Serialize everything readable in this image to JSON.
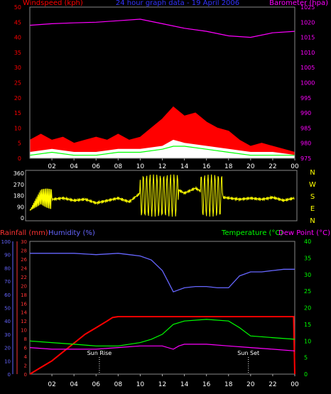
{
  "chart_data": [
    {
      "type": "line",
      "title": "24 hour graph data - 19 April 2006",
      "left_axis": {
        "label": "Windspeed (kph)",
        "ticks": [
          0,
          5,
          10,
          15,
          20,
          25,
          30,
          35,
          40,
          45,
          50
        ],
        "color": "#ff0000"
      },
      "right_axis": {
        "label": "Barometer (hpa)",
        "ticks": [
          975,
          980,
          985,
          990,
          995,
          1000,
          1005,
          1010,
          1015,
          1020,
          1025
        ],
        "color": "#ff00ff"
      },
      "x_ticks": [
        "02",
        "04",
        "06",
        "08",
        "10",
        "12",
        "14",
        "16",
        "18",
        "20",
        "22",
        "00"
      ],
      "series": [
        {
          "name": "Barometer (hpa)",
          "color": "#ff00ff",
          "x": [
            0,
            2,
            4,
            6,
            8,
            10,
            12,
            14,
            16,
            18,
            20,
            22,
            24
          ],
          "values": [
            1019,
            1019.5,
            1019.8,
            1020,
            1020.5,
            1021,
            1019.5,
            1018,
            1017,
            1015.5,
            1015,
            1016.5,
            1017
          ]
        },
        {
          "name": "Gust",
          "color": "#ff0000",
          "x": [
            0,
            1,
            2,
            3,
            4,
            5,
            6,
            7,
            8,
            9,
            10,
            11,
            12,
            13,
            14,
            15,
            16,
            17,
            18,
            19,
            20,
            21,
            22,
            23,
            24
          ],
          "values": [
            6,
            8,
            6,
            7,
            5,
            6,
            7,
            6,
            8,
            6,
            7,
            10,
            13,
            17,
            14,
            15,
            12,
            10,
            9,
            6,
            4,
            5,
            4,
            3,
            2
          ]
        },
        {
          "name": "Average",
          "color": "#ffffff",
          "x": [
            0,
            2,
            4,
            6,
            8,
            10,
            12,
            13,
            14,
            16,
            18,
            20,
            22,
            24
          ],
          "values": [
            2,
            3,
            2,
            2,
            3,
            3,
            4,
            6,
            5,
            4,
            3,
            2,
            2,
            1
          ]
        },
        {
          "name": "Wind avg",
          "color": "#00ff00",
          "x": [
            0,
            2,
            4,
            6,
            8,
            10,
            12,
            13,
            14,
            16,
            18,
            20,
            22,
            24
          ],
          "values": [
            1,
            2,
            1,
            1,
            2,
            2,
            3,
            4,
            4,
            3,
            2,
            1,
            1,
            1
          ]
        }
      ]
    },
    {
      "type": "scatter",
      "left_axis": {
        "ticks": [
          0,
          90,
          180,
          270,
          360
        ]
      },
      "right_axis": {
        "letters": [
          "N",
          "W",
          "S",
          "E",
          "N"
        ]
      },
      "x_ticks": [
        "02",
        "04",
        "06",
        "08",
        "10",
        "12",
        "14",
        "16",
        "18",
        "20",
        "22",
        "00"
      ],
      "series": [
        {
          "name": "Wind direction",
          "color": "#ffff00",
          "x": [
            0,
            1,
            2,
            3,
            4,
            5,
            6,
            7,
            8,
            9,
            10,
            11,
            12,
            13,
            14,
            15,
            16,
            17,
            18,
            19,
            20,
            21,
            22,
            23,
            24
          ],
          "values": [
            60,
            170,
            150,
            160,
            140,
            150,
            120,
            140,
            160,
            130,
            200,
            180,
            220,
            250,
            200,
            240,
            190,
            170,
            160,
            150,
            160,
            150,
            165,
            140,
            160
          ]
        }
      ]
    },
    {
      "type": "line",
      "left_axis_humidity": {
        "label": "Humidity (%)",
        "ticks": [
          0,
          10,
          20,
          30,
          40,
          50,
          60,
          70,
          80,
          90,
          100
        ],
        "color": "#6666ff"
      },
      "left_axis_rain": {
        "label": "Rainfall (mm)",
        "ticks": [
          0,
          2,
          4,
          6,
          8,
          10,
          12,
          14,
          16,
          18,
          20,
          22,
          24,
          26,
          28,
          30
        ],
        "color": "#ff3333"
      },
      "right_axis": {
        "label": "Temperature (°C)",
        "label2": "Dew Point (°C)",
        "ticks": [
          0,
          5,
          10,
          15,
          20,
          25,
          30,
          35,
          40
        ],
        "color": "#00ff00"
      },
      "x_ticks": [
        "02",
        "04",
        "06",
        "08",
        "10",
        "12",
        "14",
        "16",
        "18",
        "20",
        "22",
        "00"
      ],
      "annotations": [
        "Sun Rise",
        "Sun Set"
      ],
      "series": [
        {
          "name": "Humidity (%)",
          "color": "#6666ff",
          "x": [
            0,
            2,
            4,
            6,
            8,
            9,
            10,
            11,
            12,
            12.5,
            13,
            14,
            15,
            16,
            17,
            18,
            19,
            20,
            21,
            22,
            23,
            24
          ],
          "values": [
            91,
            91,
            91,
            90,
            91,
            90,
            89,
            86,
            78,
            70,
            62,
            65,
            66,
            66,
            65,
            65,
            74,
            77,
            77,
            78,
            79,
            79
          ]
        },
        {
          "name": "Rainfall (mm)",
          "color": "#ff0000",
          "x": [
            0,
            1,
            2,
            3,
            4,
            5,
            6,
            7,
            7.5,
            8,
            9,
            10,
            12,
            14,
            16,
            18,
            20,
            22,
            23.9,
            24
          ],
          "values": [
            0,
            1.5,
            3,
            5,
            7,
            9,
            10.5,
            12,
            12.8,
            13,
            13,
            13,
            13,
            13,
            13,
            13,
            13,
            13,
            13,
            0
          ]
        },
        {
          "name": "Temperature (°C)",
          "color": "#00ff00",
          "x": [
            0,
            2,
            4,
            6,
            8,
            10,
            11,
            12,
            13,
            14,
            16,
            18,
            19,
            20,
            22,
            24
          ],
          "values": [
            10,
            9.5,
            9,
            8.5,
            8.5,
            9.5,
            10.5,
            12,
            15,
            16,
            16.5,
            16,
            14,
            11.5,
            11,
            10.5
          ]
        },
        {
          "name": "Dew Point (°C)",
          "color": "#ff00ff",
          "x": [
            0,
            2,
            4,
            6,
            8,
            10,
            12,
            13,
            13.5,
            14,
            16,
            18,
            20,
            22,
            24
          ],
          "values": [
            8,
            7.5,
            7.5,
            7.5,
            8,
            8.5,
            8.5,
            7.5,
            8.5,
            9,
            9,
            8.5,
            8,
            7.5,
            7
          ]
        }
      ]
    }
  ]
}
